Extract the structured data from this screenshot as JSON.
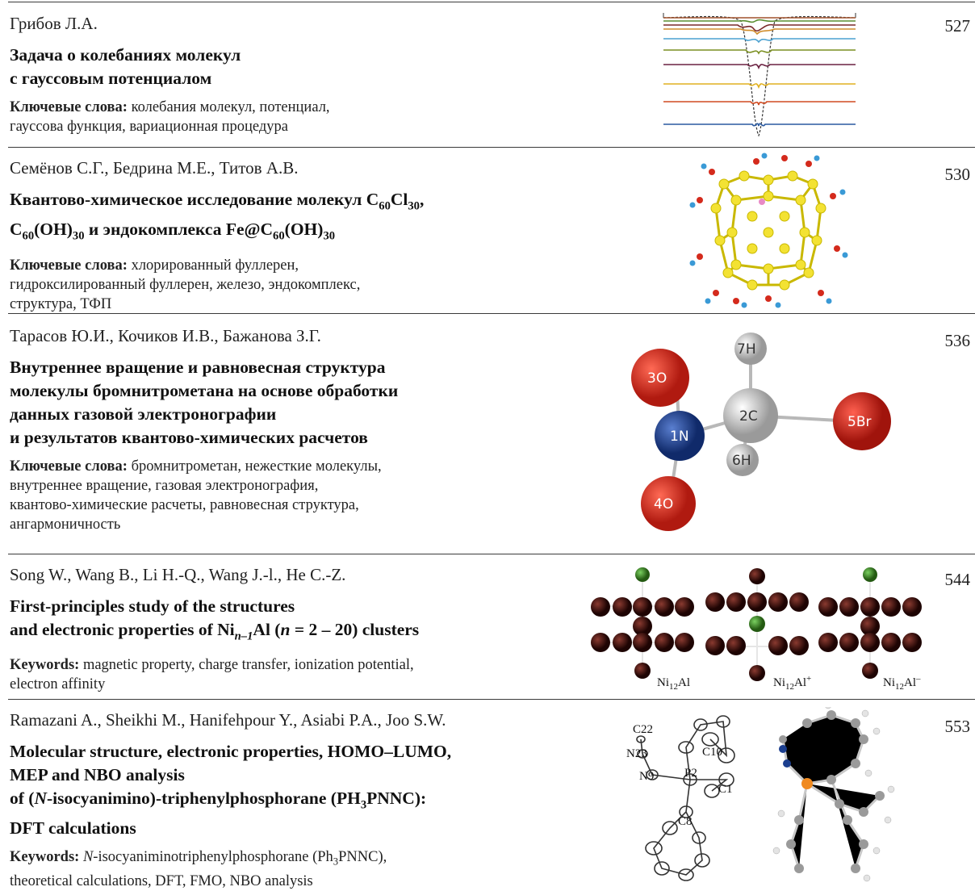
{
  "entries": [
    {
      "authors": "Грибов Л.А.",
      "title_lines": [
        "Задача о колебаниях молекул",
        "с гауссовым потенциалом"
      ],
      "keywords_label": "Ключевые слова:",
      "keywords_lines": [
        " колебания молекул, потенциал,",
        "гауссова функция, вариационная процедура"
      ],
      "page": "527",
      "figure": "gaussian-potential-levels-plot"
    },
    {
      "authors": "Семёнов С.Г., Бедрина М.Е., Титов А.В.",
      "title_html_parts": {
        "line1_a": "Квантово-химическое исследование молекул C",
        "line1_sub1": "60",
        "line1_b": "Cl",
        "line1_sub2": "30",
        "line1_c": ",",
        "line2_a": "C",
        "line2_sub1": "60",
        "line2_b": "(OH)",
        "line2_sub2": "30",
        "line2_c": " и эндокомплекса Fe@C",
        "line2_sub3": "60",
        "line2_d": "(OH)",
        "line2_sub4": "30"
      },
      "keywords_label": "Ключевые слова:",
      "keywords_lines": [
        " хлорированный фуллерен,",
        "гидроксилированный фуллерен, железо, эндокомплекс,",
        "структура, ТФП"
      ],
      "page": "530",
      "figure": "fullerene-molecule"
    },
    {
      "authors": "Тарасов Ю.И., Кочиков И.В., Бажанова З.Г.",
      "title_lines": [
        "Внутреннее вращение и равновесная структура",
        "молекулы бромнитрометана на основе обработки",
        "данных газовой электронографии",
        "и результатов квантово-химических расчетов"
      ],
      "keywords_label": "Ключевые слова:",
      "keywords_lines": [
        " бромнитрометан, нежесткие молекулы,",
        "внутреннее вращение, газовая электронография,",
        "квантово-химические расчеты, равновесная структура,",
        "ангармоничность"
      ],
      "page": "536",
      "figure": "bromonitromethane-molecule",
      "atoms": {
        "o3": "3O",
        "h7": "7H",
        "c2": "2C",
        "br5": "5Br",
        "n1": "1N",
        "h6": "6H",
        "o4": "4O"
      }
    },
    {
      "authors": "Song W., Wang B., Li H.-Q., Wang J.-l., He C.-Z.",
      "title": {
        "line1": "First-principles study of the structures",
        "line2_a": "and electronic properties of Ni",
        "line2_sub": "n–1",
        "line2_b": "Al (",
        "line2_n": "n",
        "line2_c": " = 2 – 20) clusters"
      },
      "keywords_label": "Keywords:",
      "keywords_lines": [
        " magnetic property, charge transfer, ionization potential,",
        "electron affinity"
      ],
      "page": "544",
      "figure": "ni-al-clusters",
      "cluster_labels": [
        {
          "base": "Ni",
          "sub": "12",
          "rest": "Al",
          "sup": ""
        },
        {
          "base": "Ni",
          "sub": "12",
          "rest": "Al",
          "sup": "+"
        },
        {
          "base": "Ni",
          "sub": "12",
          "rest": "Al",
          "sup": "–"
        }
      ]
    },
    {
      "authors": "Ramazani A., Sheikhi M., Hanifehpour Y., Asiabi P.A., Joo S.W.",
      "title": {
        "line1": "Molecular structure, electronic properties, HOMO–LUMO,",
        "line2": "MEP and NBO analysis",
        "line3_a": "of (",
        "line3_n": "N",
        "line3_b": "-isocyanimino)-triphenylphosphorane (PH",
        "line3_sub": "3",
        "line3_c": "PNNC):",
        "line4": "DFT calculations"
      },
      "keywords_label": "Keywords:",
      "keywords": {
        "line1_n": "N",
        "line1_a": "-isocyaniminotriphenylphosphorane (Ph",
        "line1_sub": "3",
        "line1_b": "PNNC),",
        "line2": "theoretical calculations, DFT, FMO, NBO analysis"
      },
      "page": "553",
      "figure": "ph3pnnc-structures",
      "ortep_labels": {
        "c22": "C22",
        "n23": "N23",
        "n9": "N9",
        "p2": "P2",
        "c10": "C10",
        "c1": "C1",
        "c8": "C8"
      }
    }
  ],
  "colors": {
    "rule": "#3a3a3a",
    "oxygen": "#d42a1c",
    "nitrogen": "#1c3f8f",
    "hydrogen": "#dcdcdc",
    "bromine": "#c8201a",
    "carbon_fullerene": "#f3e233",
    "ni_atom": "#3a0b07",
    "al_atom": "#3f8f25"
  }
}
